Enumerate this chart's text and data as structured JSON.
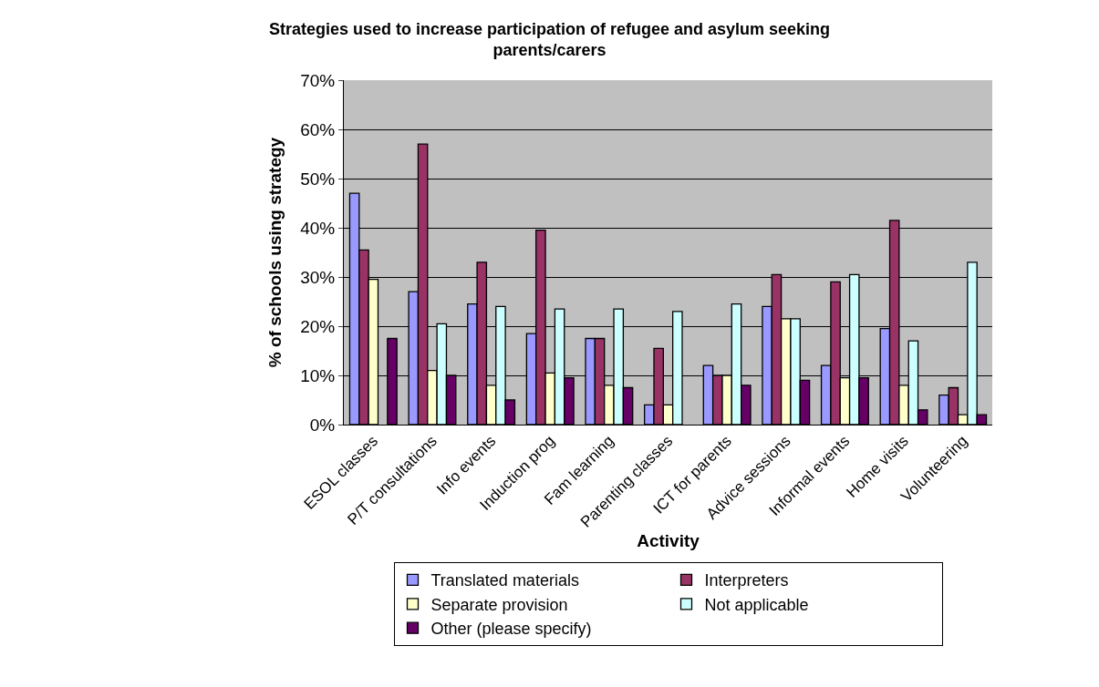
{
  "chart_data": {
    "type": "bar",
    "title": "Strategies used to increase participation of refugee and asylum seeking parents/carers",
    "xlabel": "Activity",
    "ylabel": "% of schools using strategy",
    "categories": [
      "ESOL classes",
      "P/T consultations",
      "Info events",
      "Induction prog",
      "Fam learning",
      "Parenting classes",
      "ICT for parents",
      "Advice sessions",
      "Informal events",
      "Home visits",
      "Volunteering"
    ],
    "series": [
      {
        "name": "Translated materials",
        "color": "#9999ff",
        "values": [
          47,
          27,
          24.5,
          18.5,
          17.5,
          4,
          12,
          24,
          12,
          19.5,
          6
        ]
      },
      {
        "name": "Interpreters",
        "color": "#993366",
        "values": [
          35.5,
          57,
          33,
          39.5,
          17.5,
          15.5,
          10,
          30.5,
          29,
          41.5,
          7.5
        ]
      },
      {
        "name": "Separate provision",
        "color": "#ffffcc",
        "values": [
          29.5,
          11,
          8,
          10.5,
          8,
          4,
          10,
          21.5,
          9.5,
          8,
          2
        ]
      },
      {
        "name": "Not applicable",
        "color": "#ccffff",
        "values": [
          null,
          20.5,
          24,
          23.5,
          23.5,
          23,
          24.5,
          21.5,
          30.5,
          17,
          33
        ]
      },
      {
        "name": "Other (please specify)",
        "color": "#660066",
        "values": [
          17.5,
          10,
          5,
          9.5,
          7.5,
          null,
          8,
          9,
          9.5,
          3,
          2
        ]
      }
    ],
    "ylim": [
      0,
      70
    ],
    "yticks": [
      {
        "value": 0,
        "label": "0%"
      },
      {
        "value": 10,
        "label": "10%"
      },
      {
        "value": 20,
        "label": "20%"
      },
      {
        "value": 30,
        "label": "30%"
      },
      {
        "value": 40,
        "label": "40%"
      },
      {
        "value": 50,
        "label": "50%"
      },
      {
        "value": 60,
        "label": "60%"
      },
      {
        "value": 70,
        "label": "70%"
      }
    ],
    "grid": "y",
    "legend": "bottom"
  }
}
